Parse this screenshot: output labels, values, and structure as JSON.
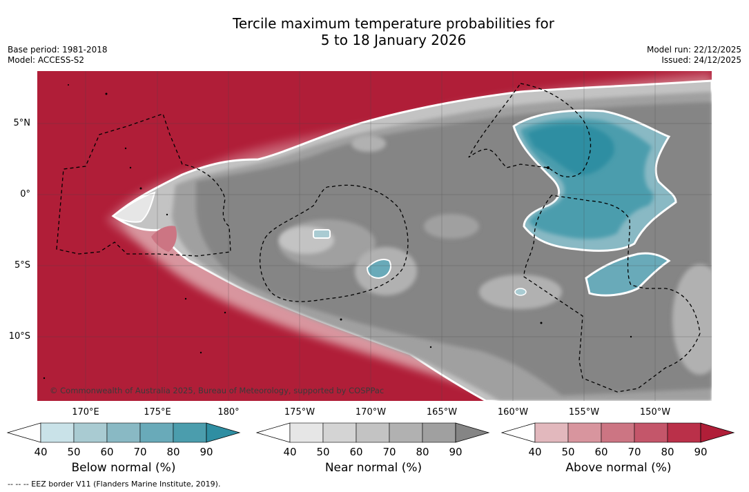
{
  "header": {
    "title_line1": "Tercile maximum temperature probabilities for",
    "title_line2": "5 to 18 January 2026",
    "base_period": "Base period: 1981-2018",
    "model": "Model: ACCESS-S2",
    "model_run": "Model run: 22/12/2025",
    "issued": "Issued: 24/12/2025"
  },
  "map": {
    "copyright": "© Commonwealth of Australia 2025, Bureau of Meteorology, supported by COSPPac",
    "lat_labels": [
      "5°N",
      "0°",
      "5°S",
      "10°S"
    ],
    "lon_labels": [
      "170°E",
      "175°E",
      "180°",
      "175°W",
      "170°W",
      "165°W",
      "160°W",
      "155°W",
      "150°W"
    ]
  },
  "colorbars": [
    {
      "name": "below",
      "label": "Below normal (%)",
      "ticks": [
        "40",
        "50",
        "60",
        "70",
        "80",
        "90"
      ],
      "colors": [
        "#c9e2e8",
        "#a9cbd2",
        "#89b9c4",
        "#69aab9",
        "#4b9dad",
        "#2f8ea2"
      ]
    },
    {
      "name": "near",
      "label": "Near normal (%)",
      "ticks": [
        "40",
        "50",
        "60",
        "70",
        "80",
        "90"
      ],
      "colors": [
        "#e6e6e6",
        "#d4d4d4",
        "#c3c3c3",
        "#b1b1b1",
        "#a0a0a0",
        "#858585"
      ]
    },
    {
      "name": "above",
      "label": "Above normal (%)",
      "ticks": [
        "40",
        "50",
        "60",
        "70",
        "80",
        "90"
      ],
      "colors": [
        "#e2b8bd",
        "#d8959e",
        "#cc7583",
        "#c4566a",
        "#ba3049",
        "#b01e38"
      ]
    }
  ],
  "footer": {
    "note": "--  --  -- EEZ border V11 (Flanders Marine Institute, 2019)."
  }
}
